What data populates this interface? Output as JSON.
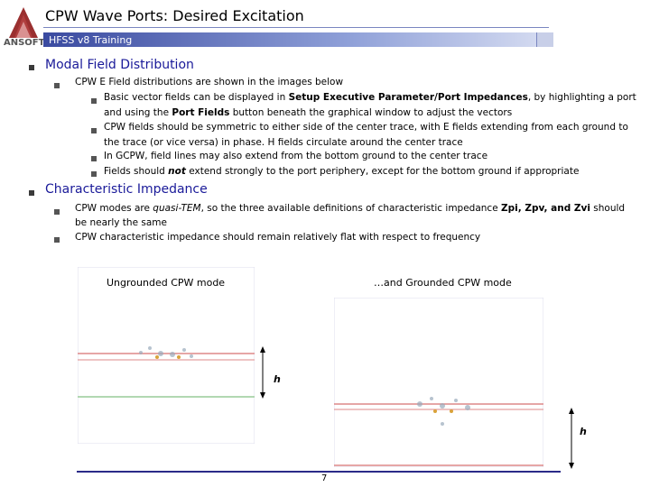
{
  "header": {
    "title": "CPW Wave Ports:  Desired Excitation",
    "subtitle": "HFSS v8 Training",
    "logo": "ANSOFT"
  },
  "sections": [
    {
      "heading": "Modal Field Distribution",
      "items": [
        {
          "text": "CPW E Field distributions are shown in the images below",
          "subitems": [
            [
              "Basic vector fields can be displayed in ",
              "Setup Executive Parameter/Port Impedances",
              ", by highlighting a port and using the ",
              "Port Fields",
              " button beneath the graphical window to adjust the vectors"
            ],
            [
              "CPW fields should be symmetric to either side of the center trace, with E fields extending from each ground to the trace (or vice versa) in phase.  H fields circulate around the center trace"
            ],
            [
              "In GCPW, field lines may also extend from the bottom ground to the center trace"
            ],
            [
              "Fields should ",
              "not",
              " extend strongly to the port periphery, except for the bottom ground if appropriate"
            ]
          ]
        }
      ]
    },
    {
      "heading": "Characteristic Impedance",
      "items": [
        {
          "runs": [
            "CPW modes are ",
            "quasi-TEM",
            ", so the three available definitions of characteristic impedance ",
            "Zpi, Zpv, and Zvi",
            " should be nearly the same"
          ]
        },
        {
          "runs": [
            "CPW characteristic impedance should remain relatively flat with respect to frequency"
          ]
        }
      ]
    }
  ],
  "images": [
    {
      "caption": "Ungrounded CPW mode",
      "dim_label": "h"
    },
    {
      "caption": "…and Grounded CPW mode",
      "dim_label": "h"
    }
  ],
  "footer": {
    "page": "7"
  }
}
